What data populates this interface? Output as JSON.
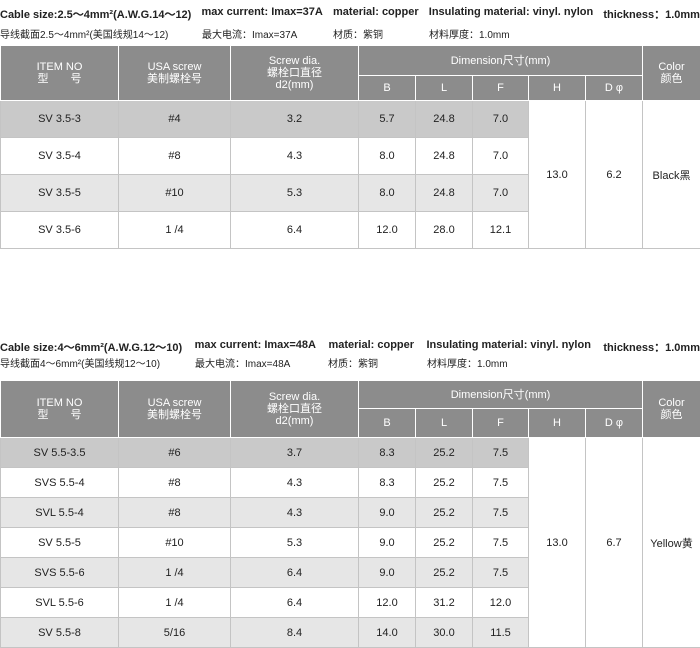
{
  "sections": [
    {
      "spec": [
        "Cable size:2.5～4mm²(A.W.G.14～12)",
        "max current: Imax=37A",
        "material: copper",
        "Insulating material: vinyl. nylon",
        "thickness：1.0mm"
      ],
      "spec_cn": [
        "导线截面2.5～4mm²(美国线规14～12)",
        "最大电流：Imax=37A",
        "材质：紫铜",
        "材料厚度：1.0mm"
      ],
      "table": {
        "header": {
          "item": [
            "ITEM NO",
            "型　　号"
          ],
          "usa": [
            "USA screw",
            "美制螺栓号"
          ],
          "screw": [
            "Screw dia.",
            "螺栓口直径",
            "d2(mm)"
          ],
          "dimension": "Dimension尺寸(mm)",
          "dims": [
            "B",
            "L",
            "F",
            "H",
            "D φ"
          ],
          "color": [
            "Color",
            "颜色"
          ]
        },
        "rows": [
          [
            "SV 3.5-3",
            "#4",
            "3.2",
            "5.7",
            "24.8",
            "7.0"
          ],
          [
            "SV 3.5-4",
            "#8",
            "4.3",
            "8.0",
            "24.8",
            "7.0"
          ],
          [
            "SV 3.5-5",
            "#10",
            "5.3",
            "8.0",
            "24.8",
            "7.0"
          ],
          [
            "SV 3.5-6",
            "1 /4",
            "6.4",
            "12.0",
            "28.0",
            "12.1"
          ]
        ],
        "h": "13.0",
        "d": "6.2",
        "color": "Black黑"
      }
    },
    {
      "spec": [
        "Cable size:4～6mm²(A.W.G.12～10)",
        "max current: Imax=48A",
        "material: copper",
        "Insulating material: vinyl. nylon",
        "thickness：1.0mm"
      ],
      "spec_cn": [
        "导线截面4～6mm²(美国线规12～10)",
        "最大电流：Imax=48A",
        "材质：紫铜",
        "材料厚度：1.0mm"
      ],
      "table": {
        "header": {
          "item": [
            "ITEM NO",
            "型　　号"
          ],
          "usa": [
            "USA screw",
            "美制螺栓号"
          ],
          "screw": [
            "Screw dia.",
            "螺栓口直径",
            "d2(mm)"
          ],
          "dimension": "Dimension尺寸(mm)",
          "dims": [
            "B",
            "L",
            "F",
            "H",
            "D φ"
          ],
          "color": [
            "Color",
            "颜色"
          ]
        },
        "rows": [
          [
            "SV 5.5-3.5",
            "#6",
            "3.7",
            "8.3",
            "25.2",
            "7.5"
          ],
          [
            "SVS 5.5-4",
            "#8",
            "4.3",
            "8.3",
            "25.2",
            "7.5"
          ],
          [
            "SVL 5.5-4",
            "#8",
            "4.3",
            "9.0",
            "25.2",
            "7.5"
          ],
          [
            "SV 5.5-5",
            "#10",
            "5.3",
            "9.0",
            "25.2",
            "7.5"
          ],
          [
            "SVS 5.5-6",
            "1 /4",
            "6.4",
            "9.0",
            "25.2",
            "7.5"
          ],
          [
            "SVL 5.5-6",
            "1 /4",
            "6.4",
            "12.0",
            "31.2",
            "12.0"
          ],
          [
            "SV 5.5-8",
            "5/16",
            "8.4",
            "14.0",
            "30.0",
            "11.5"
          ]
        ],
        "h": "13.0",
        "d": "6.7",
        "color": "Yellow黄"
      }
    }
  ]
}
